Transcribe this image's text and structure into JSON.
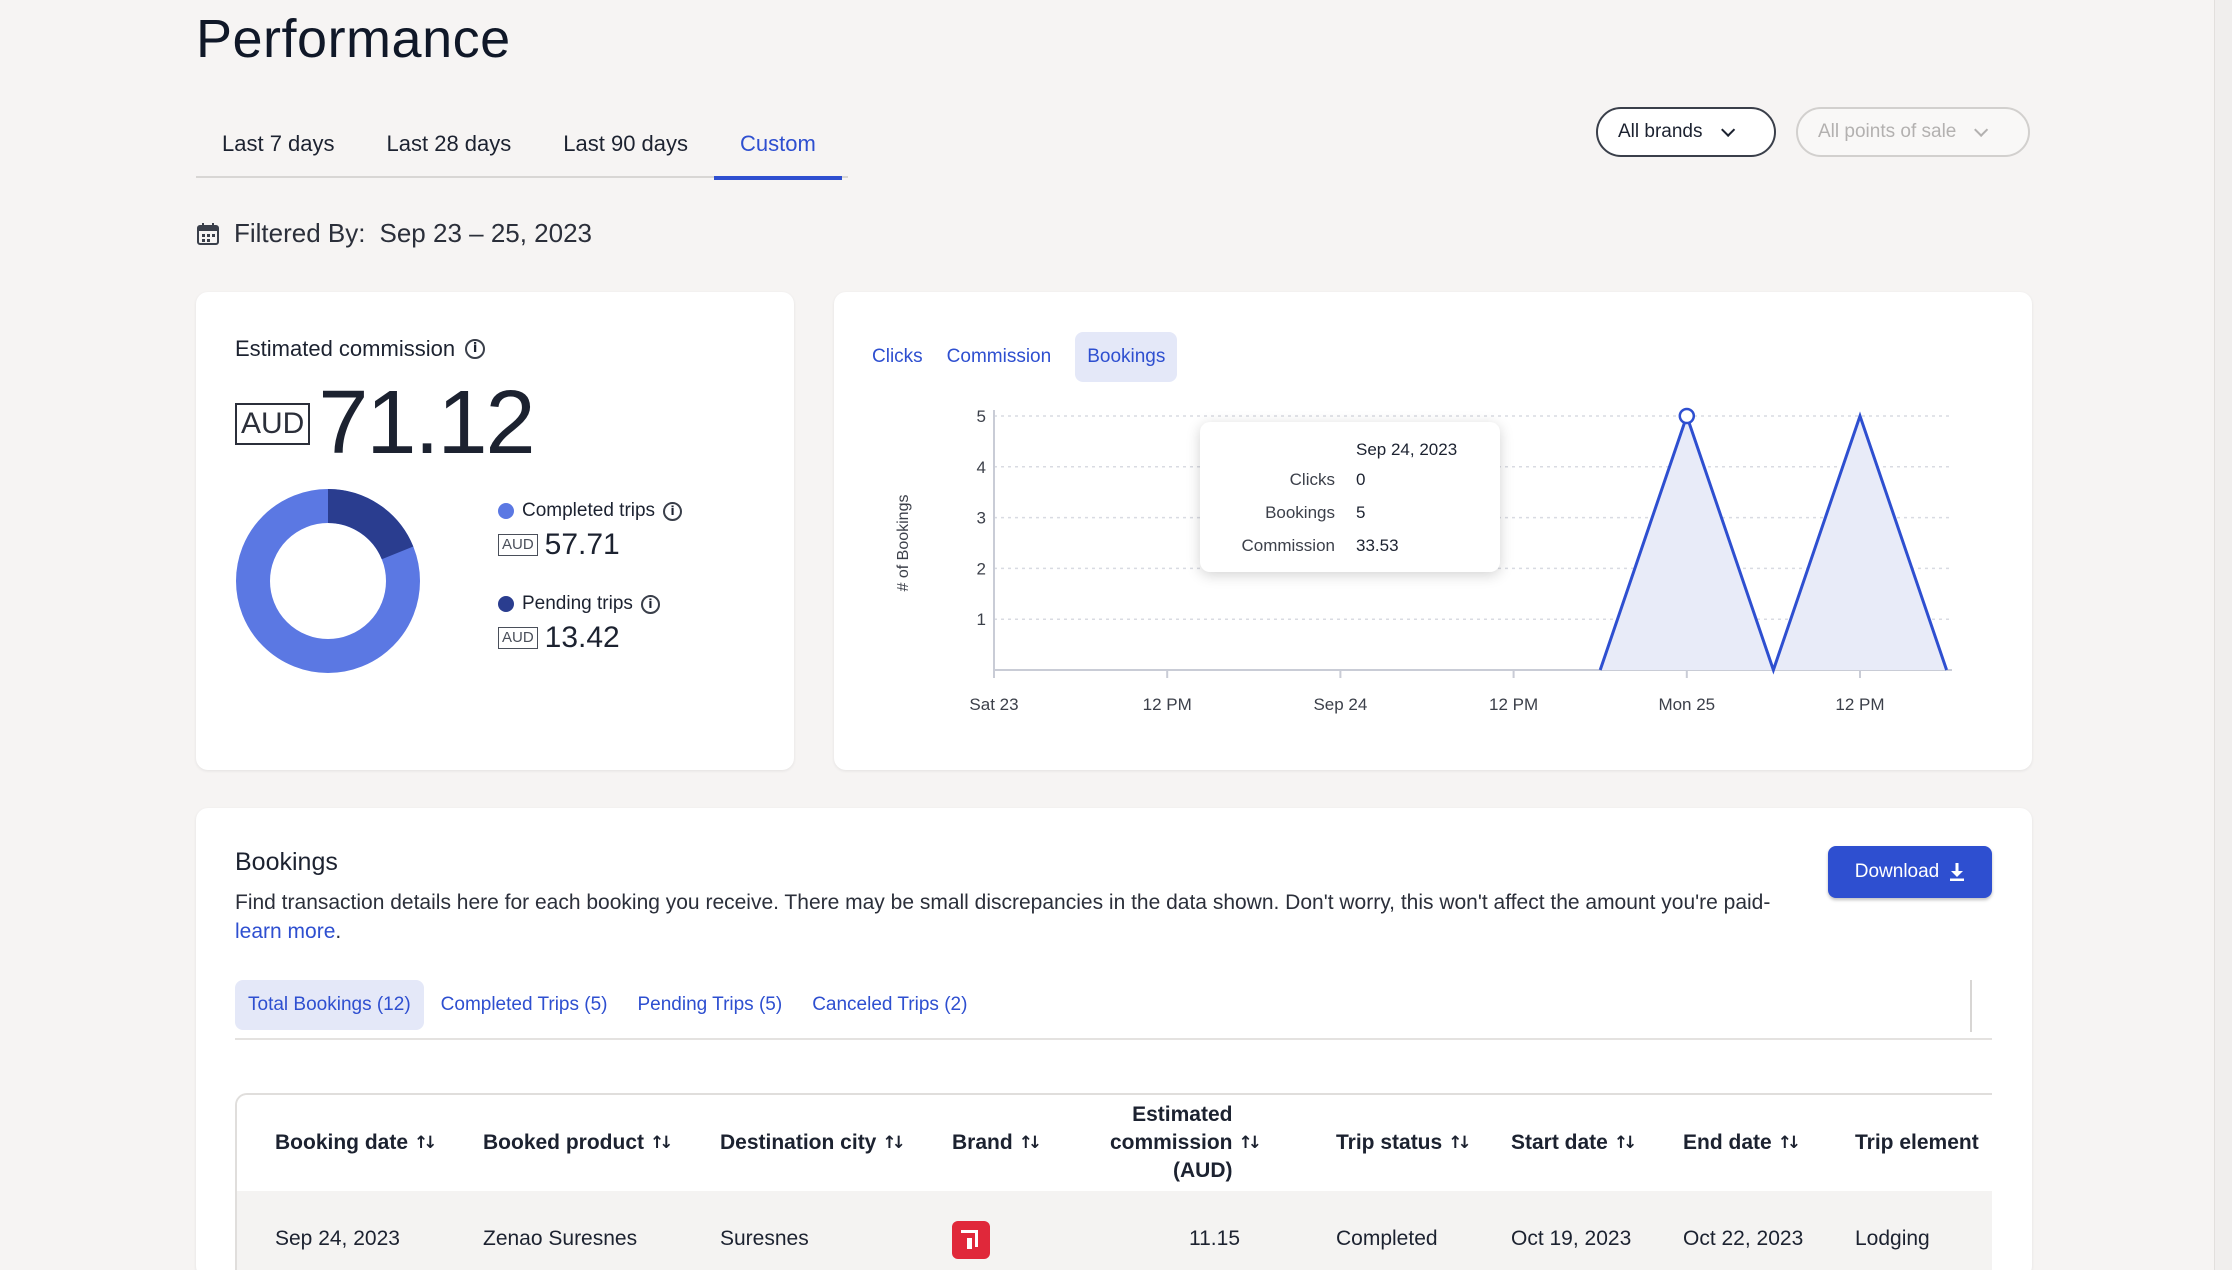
{
  "page": {
    "title": "Performance"
  },
  "period_tabs": [
    {
      "label": "Last 7 days"
    },
    {
      "label": "Last 28 days"
    },
    {
      "label": "Last 90 days"
    },
    {
      "label": "Custom"
    }
  ],
  "active_period": "Custom",
  "filters": {
    "brands": "All brands",
    "points_of_sale": "All points of sale"
  },
  "filtered_by": {
    "label": "Filtered By:",
    "value": "Sep 23 – 25, 2023"
  },
  "commission": {
    "label": "Estimated commission",
    "currency": "AUD",
    "total": "71.12",
    "completed": {
      "label": "Completed trips",
      "currency": "AUD",
      "value": "57.71",
      "amount": 57.71,
      "color": "#5b78e3"
    },
    "pending": {
      "label": "Pending trips",
      "currency": "AUD",
      "value": "13.42",
      "amount": 13.42,
      "color": "#2a3d8f"
    }
  },
  "metric_tabs": [
    {
      "label": "Clicks"
    },
    {
      "label": "Commission"
    },
    {
      "label": "Bookings"
    }
  ],
  "active_metric": "Bookings",
  "chart_data": {
    "type": "area",
    "ylabel": "# of Bookings",
    "xlabel": "",
    "x_ticks": [
      "Sat 23",
      "12 PM",
      "Sep 24",
      "12 PM",
      "Mon 25",
      "12 PM"
    ],
    "y_ticks": [
      1,
      2,
      3,
      4,
      5
    ],
    "ylim": [
      0,
      5
    ],
    "x_hours": [
      0,
      12,
      24,
      30,
      36,
      42,
      48,
      54,
      60,
      66
    ],
    "x_dates": [
      "Sep 23 00:00",
      "Sep 23 12:00",
      "Sep 24 00:00",
      "Sep 24 06:00",
      "Sep 24 12:00",
      "Sep 24 18:00",
      "Sep 25 00:00",
      "Sep 25 06:00",
      "Sep 25 12:00",
      "Sep 25 18:00"
    ],
    "series": [
      {
        "values": [
          0,
          0,
          0,
          0,
          0,
          0,
          5,
          0,
          5,
          0
        ],
        "color": "#2e4fd0"
      }
    ],
    "grid": true,
    "highlight_index": 6
  },
  "tooltip": {
    "date": "Sep 24, 2023",
    "rows": [
      {
        "key": "Clicks",
        "value": "0"
      },
      {
        "key": "Bookings",
        "value": "5"
      },
      {
        "key": "Commission",
        "value": "33.53"
      }
    ]
  },
  "bookings": {
    "title": "Bookings",
    "description": "Find transaction details here for each booking you receive. There may be small discrepancies in the data shown. Don't worry, this won't affect the amount you're paid-",
    "learn_more": "learn more",
    "period": ".",
    "download_label": "Download"
  },
  "status_tabs": [
    {
      "label": "Total Bookings (12)"
    },
    {
      "label": "Completed Trips (5)"
    },
    {
      "label": "Pending Trips (5)"
    },
    {
      "label": "Canceled Trips (2)"
    }
  ],
  "table": {
    "columns": [
      "Booking date",
      "Booked product",
      "Destination city",
      "Brand",
      "Estimated commission (AUD)",
      "Trip status",
      "Start date",
      "End date",
      "Trip element"
    ],
    "rows": [
      {
        "booking_date": "Sep 24, 2023",
        "product": "Zenao Suresnes",
        "city": "Suresnes",
        "brand_icon": "brand-logo-icon",
        "commission": "11.15",
        "status": "Completed",
        "start": "Oct 19, 2023",
        "end": "Oct 22, 2023",
        "element": "Lodging"
      }
    ]
  }
}
